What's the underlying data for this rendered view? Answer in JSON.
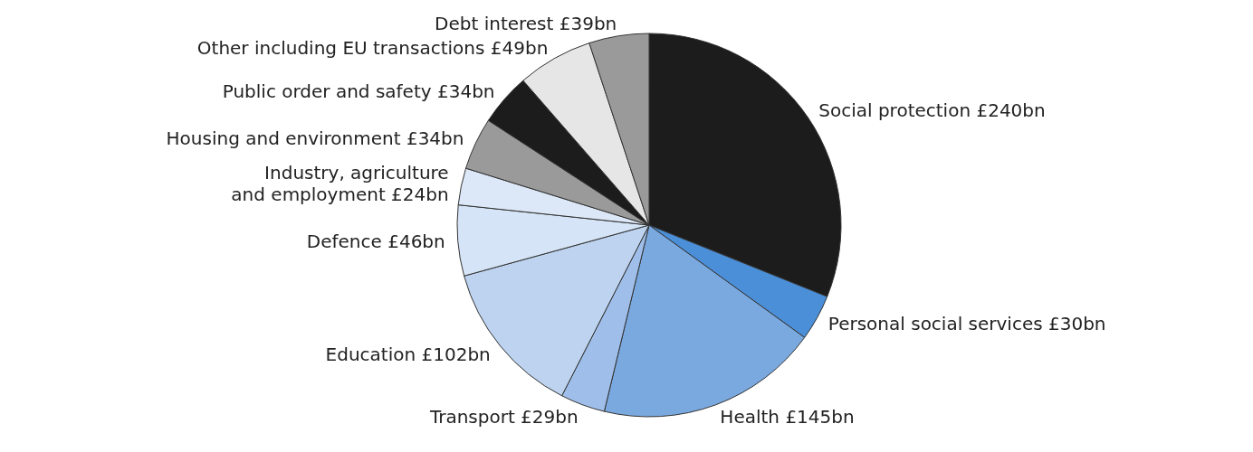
{
  "chart_data": {
    "type": "pie",
    "categories": [
      "Social protection",
      "Personal social services",
      "Health",
      "Transport",
      "Education",
      "Defence",
      "Industry, agriculture\nand employment",
      "Housing and environment",
      "Public order and safety",
      "Other including EU transactions",
      "Debt interest"
    ],
    "values": [
      240,
      30,
      145,
      29,
      102,
      46,
      24,
      34,
      34,
      49,
      39
    ],
    "value_labels": [
      "£240bn",
      "£30bn",
      "£145bn",
      "£29bn",
      "£102bn",
      "£46bn",
      "£24bn",
      "£34bn",
      "£34bn",
      "£49bn",
      "£39bn"
    ],
    "colors": [
      "#1c1c1c",
      "#4a8fd8",
      "#7aa9e0",
      "#9fbfea",
      "#bdd3ef",
      "#d5e4f6",
      "#dce8f8",
      "#9a9a9a",
      "#1c1c1c",
      "#e6e6e6",
      "#9a9a9a"
    ],
    "legend": false
  }
}
